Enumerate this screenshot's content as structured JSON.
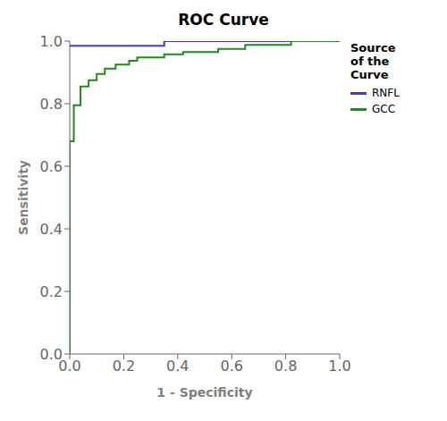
{
  "chart_data": {
    "type": "step",
    "title": "ROC Curve",
    "xlabel": "1 - Specificity",
    "ylabel": "Sensitivity",
    "xlim": [
      0.0,
      1.0
    ],
    "ylim": [
      0.0,
      1.0
    ],
    "xticks": [
      {
        "value": 0.0,
        "label": "0.0"
      },
      0.2,
      0.4,
      0.6,
      0.8,
      {
        "value": 1.0,
        "label": "1.0"
      }
    ],
    "yticks": [
      {
        "value": 0.0,
        "label": "0.0"
      },
      0.2,
      0.4,
      0.6,
      0.8,
      {
        "value": 1.0,
        "label": "1.0"
      }
    ],
    "grid": false,
    "legend": "right",
    "legend_title": "Source\nof the\nCurve",
    "series": [
      {
        "name": "RNFL",
        "color": "#4040bb",
        "x": [
          0.0,
          0.35,
          0.35,
          1.0
        ],
        "values": [
          0.985,
          0.985,
          1.0,
          1.0
        ]
      },
      {
        "name": "GCC",
        "color": "#228822",
        "x": [
          0.0,
          0.0,
          0.015,
          0.015,
          0.04,
          0.04,
          0.07,
          0.07,
          0.1,
          0.1,
          0.13,
          0.13,
          0.17,
          0.17,
          0.22,
          0.22,
          0.25,
          0.25,
          0.35,
          0.35,
          0.42,
          0.42,
          0.55,
          0.55,
          0.65,
          0.65,
          0.82,
          0.82,
          1.0
        ],
        "values": [
          0.0,
          0.68,
          0.68,
          0.795,
          0.795,
          0.855,
          0.855,
          0.875,
          0.875,
          0.895,
          0.895,
          0.912,
          0.912,
          0.925,
          0.925,
          0.937,
          0.937,
          0.948,
          0.948,
          0.958,
          0.958,
          0.965,
          0.965,
          0.975,
          0.975,
          0.988,
          0.988,
          1.0,
          1.0
        ]
      }
    ]
  }
}
